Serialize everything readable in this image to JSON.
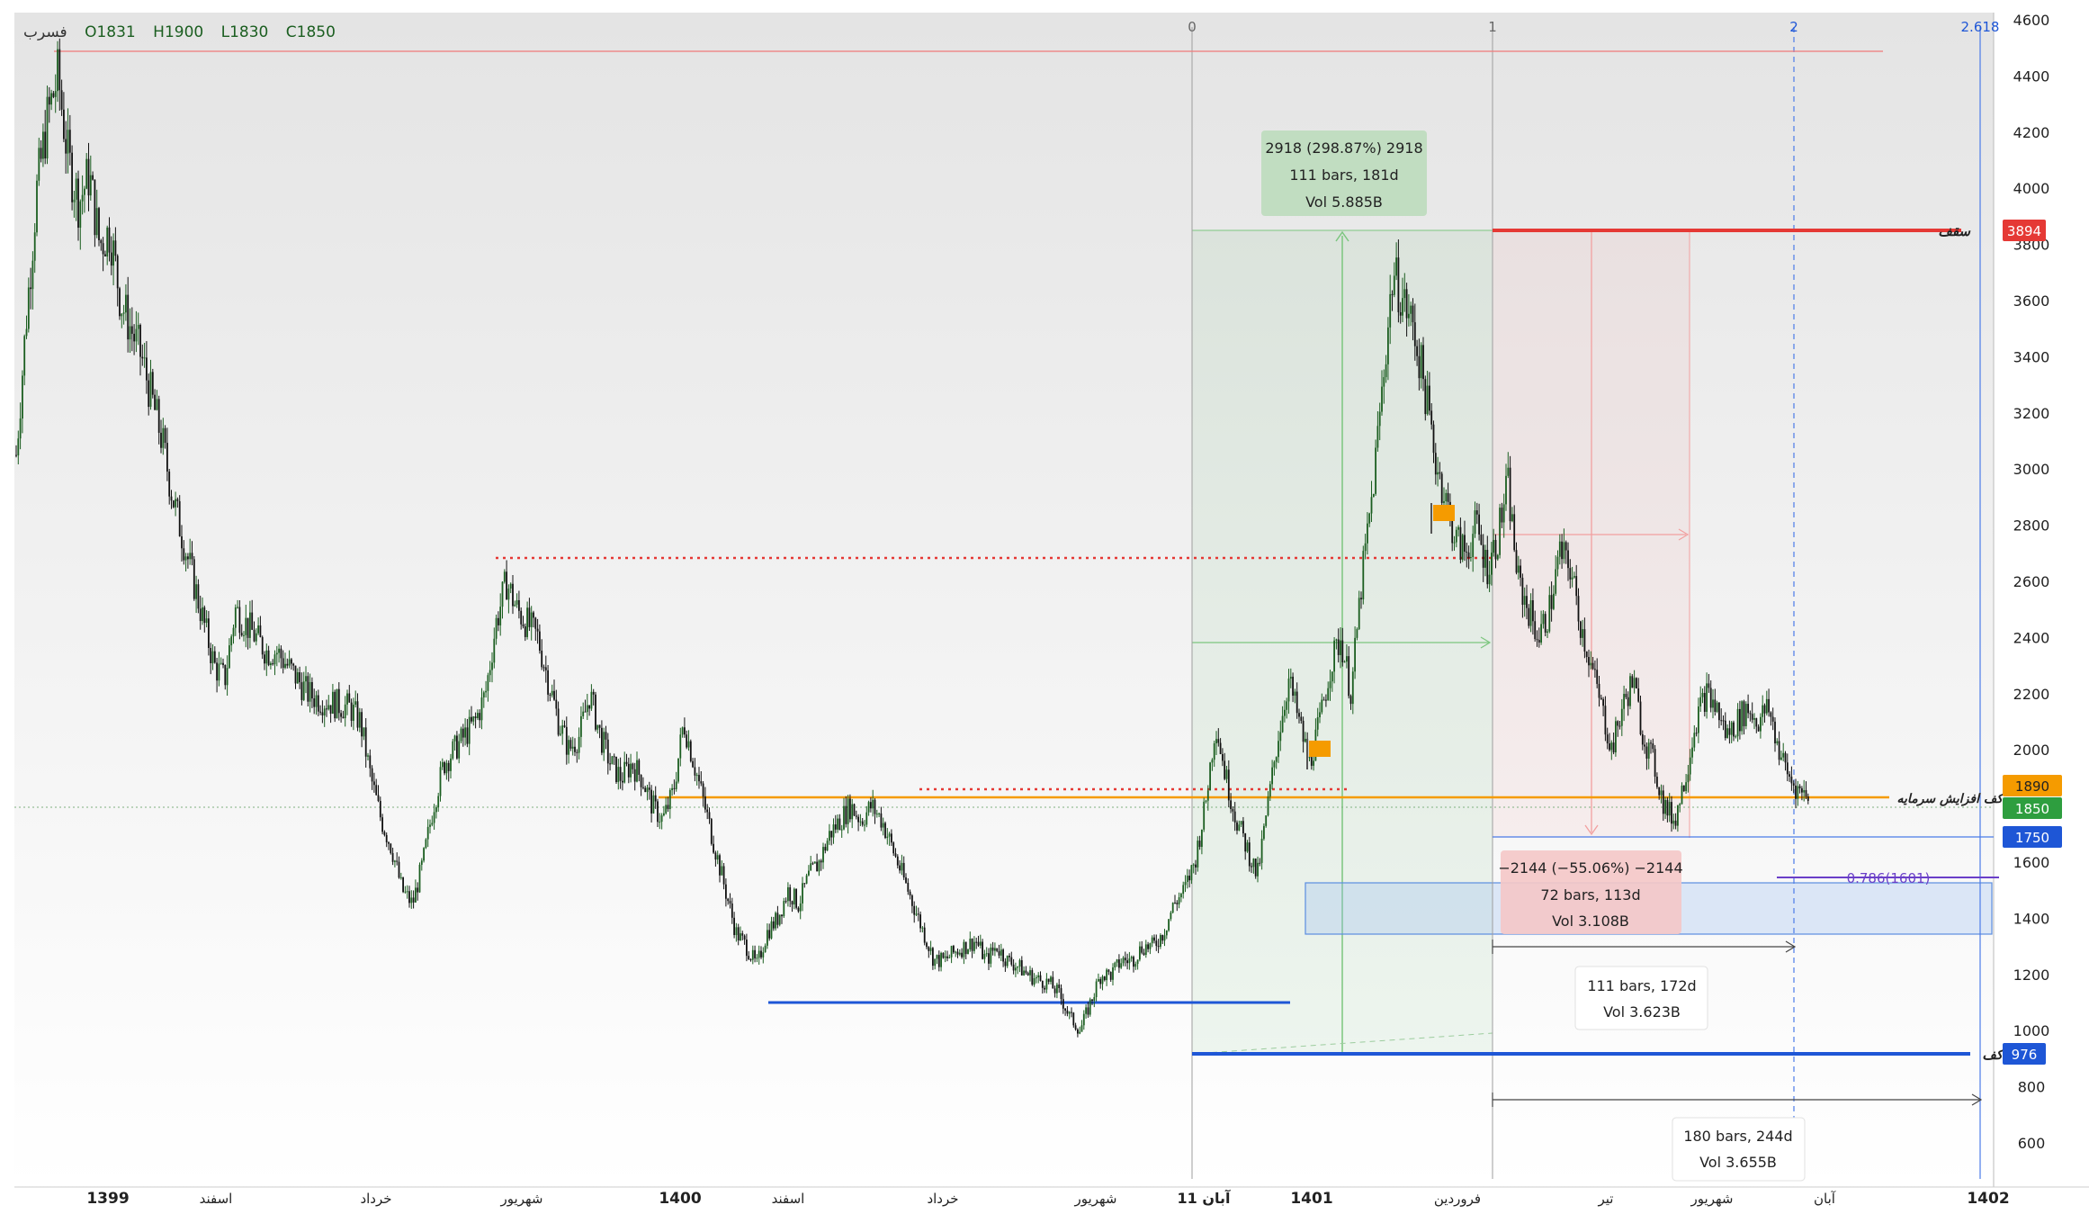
{
  "ohlc": {
    "symbol": "فسرب",
    "open": "O1831",
    "high": "H1900",
    "low": "L1830",
    "close": "C1850"
  },
  "y_ticks": [
    "4600",
    "4400",
    "4200",
    "4000",
    "3800",
    "3600",
    "3400",
    "3200",
    "3000",
    "2800",
    "2600",
    "2400",
    "2200",
    "2000",
    "1800",
    "1600",
    "1400",
    "1200",
    "1000",
    "800",
    "600"
  ],
  "x_labels": [
    "1399",
    "اسفند",
    "خرداد",
    "شهریور",
    "1400",
    "اسفند",
    "خرداد",
    "شهریور",
    "آبان 11",
    "1401",
    "فروردین",
    "تیر",
    "شهریور",
    "آبان",
    "1402"
  ],
  "fib_labels": [
    "0",
    "1",
    "2",
    "2.618"
  ],
  "price_badges": {
    "ceiling": "3894",
    "ceiling_label": "سقف",
    "capital": "1890",
    "capital_label": "کف افزایش سرمایه",
    "close": "1850",
    "support": "1750",
    "floor": "976",
    "floor_label": "کف"
  },
  "fib_level": "0.786(1601)",
  "measure_up": {
    "line1": "2918 (298.87%) 2918",
    "line2": "111 bars, 181d",
    "line3": "Vol 5.885B"
  },
  "measure_down": {
    "line1": "−2144 (−55.06%) −2144",
    "line2": "72 bars, 113d",
    "line3": "Vol 3.108B"
  },
  "range1": {
    "line1": "111 bars, 172d",
    "line2": "Vol 3.623B"
  },
  "range2": {
    "line1": "180 bars, 244d",
    "line2": "Vol 3.655B"
  },
  "colors": {
    "up": "#1b5e20",
    "down": "#111111",
    "red": "#e53935",
    "blue": "#1e56d6",
    "orange": "#f59b00",
    "green_badge": "#2e9e3f",
    "purple": "#6a3fc8"
  },
  "chart_data": {
    "type": "candlestick",
    "y_range": [
      600,
      4600
    ],
    "close_path": [
      [
        0,
        3050
      ],
      [
        1,
        3550
      ],
      [
        2,
        4000
      ],
      [
        3,
        4250
      ],
      [
        4,
        4400
      ],
      [
        5,
        4100
      ],
      [
        6,
        3950
      ],
      [
        7,
        4050
      ],
      [
        8,
        3800
      ],
      [
        9,
        3850
      ],
      [
        10,
        3600
      ],
      [
        11,
        3500
      ],
      [
        12,
        3400
      ],
      [
        13,
        3250
      ],
      [
        14,
        3100
      ],
      [
        15,
        2900
      ],
      [
        16,
        2750
      ],
      [
        17,
        2600
      ],
      [
        18,
        2450
      ],
      [
        19,
        2300
      ],
      [
        20,
        2250
      ],
      [
        21,
        2500
      ],
      [
        22,
        2450
      ],
      [
        23,
        2400
      ],
      [
        24,
        2350
      ],
      [
        25,
        2350
      ],
      [
        26,
        2300
      ],
      [
        27,
        2250
      ],
      [
        28,
        2200
      ],
      [
        29,
        2180
      ],
      [
        30,
        2170
      ],
      [
        31,
        2160
      ],
      [
        32,
        2150
      ],
      [
        33,
        2100
      ],
      [
        34,
        1900
      ],
      [
        35,
        1750
      ],
      [
        36,
        1650
      ],
      [
        37,
        1500
      ],
      [
        38,
        1450
      ],
      [
        39,
        1600
      ],
      [
        40,
        1800
      ],
      [
        41,
        1950
      ],
      [
        42,
        2000
      ],
      [
        43,
        2050
      ],
      [
        44,
        2100
      ],
      [
        45,
        2200
      ],
      [
        46,
        2450
      ],
      [
        47,
        2600
      ],
      [
        48,
        2500
      ],
      [
        49,
        2450
      ],
      [
        50,
        2400
      ],
      [
        51,
        2250
      ],
      [
        52,
        2100
      ],
      [
        53,
        2000
      ],
      [
        54,
        2050
      ],
      [
        55,
        2200
      ],
      [
        56,
        2050
      ],
      [
        57,
        1950
      ],
      [
        58,
        1900
      ],
      [
        59,
        1950
      ],
      [
        60,
        1900
      ],
      [
        61,
        1800
      ],
      [
        62,
        1750
      ],
      [
        63,
        1850
      ],
      [
        64,
        2100
      ],
      [
        65,
        1950
      ],
      [
        66,
        1800
      ],
      [
        67,
        1650
      ],
      [
        68,
        1500
      ],
      [
        69,
        1350
      ],
      [
        70,
        1300
      ],
      [
        71,
        1230
      ],
      [
        72,
        1350
      ],
      [
        73,
        1400
      ],
      [
        74,
        1500
      ],
      [
        75,
        1450
      ],
      [
        76,
        1550
      ],
      [
        77,
        1600
      ],
      [
        78,
        1700
      ],
      [
        79,
        1750
      ],
      [
        80,
        1800
      ],
      [
        81,
        1750
      ],
      [
        82,
        1800
      ],
      [
        83,
        1750
      ],
      [
        84,
        1650
      ],
      [
        85,
        1550
      ],
      [
        86,
        1450
      ],
      [
        87,
        1350
      ],
      [
        88,
        1250
      ],
      [
        89,
        1250
      ],
      [
        90,
        1280
      ],
      [
        91,
        1300
      ],
      [
        92,
        1320
      ],
      [
        93,
        1250
      ],
      [
        94,
        1300
      ],
      [
        95,
        1250
      ],
      [
        96,
        1230
      ],
      [
        97,
        1200
      ],
      [
        98,
        1180
      ],
      [
        99,
        1170
      ],
      [
        100,
        1130
      ],
      [
        101,
        1050
      ],
      [
        102,
        1000
      ],
      [
        103,
        1100
      ],
      [
        104,
        1200
      ],
      [
        105,
        1200
      ],
      [
        106,
        1250
      ],
      [
        107,
        1250
      ],
      [
        108,
        1300
      ],
      [
        109,
        1300
      ],
      [
        110,
        1350
      ],
      [
        111,
        1450
      ],
      [
        112,
        1500
      ],
      [
        113,
        1600
      ],
      [
        114,
        1800
      ],
      [
        115,
        2100
      ],
      [
        116,
        1900
      ],
      [
        117,
        1750
      ],
      [
        118,
        1650
      ],
      [
        119,
        1550
      ],
      [
        120,
        1800
      ],
      [
        121,
        2050
      ],
      [
        122,
        2250
      ],
      [
        123,
        2100
      ],
      [
        124,
        1950
      ],
      [
        125,
        2100
      ],
      [
        126,
        2300
      ],
      [
        127,
        2400
      ],
      [
        128,
        2200
      ],
      [
        129,
        2600
      ],
      [
        130,
        2900
      ],
      [
        131,
        3300
      ],
      [
        132,
        3700
      ],
      [
        133,
        3600
      ],
      [
        134,
        3500
      ],
      [
        135,
        3300
      ],
      [
        136,
        3050
      ],
      [
        137,
        2900
      ],
      [
        138,
        2750
      ],
      [
        139,
        2700
      ],
      [
        140,
        2800
      ],
      [
        141,
        2650
      ],
      [
        142,
        2750
      ],
      [
        143,
        2950
      ],
      [
        144,
        2600
      ],
      [
        145,
        2500
      ],
      [
        146,
        2400
      ],
      [
        147,
        2500
      ],
      [
        148,
        2700
      ],
      [
        149,
        2650
      ],
      [
        150,
        2450
      ],
      [
        151,
        2300
      ],
      [
        152,
        2150
      ],
      [
        153,
        2000
      ],
      [
        154,
        2150
      ],
      [
        155,
        2250
      ],
      [
        156,
        2050
      ],
      [
        157,
        1950
      ],
      [
        158,
        1800
      ],
      [
        159,
        1750
      ],
      [
        160,
        1900
      ],
      [
        161,
        2100
      ],
      [
        162,
        2200
      ],
      [
        163,
        2150
      ],
      [
        164,
        2050
      ],
      [
        165,
        2100
      ],
      [
        166,
        2150
      ],
      [
        167,
        2100
      ],
      [
        168,
        2150
      ],
      [
        169,
        2000
      ],
      [
        170,
        1900
      ],
      [
        171,
        1850
      ],
      [
        172,
        1850
      ]
    ],
    "levels": {
      "ceiling": 3894,
      "capital_increase_floor": 1890,
      "close": 1850,
      "support": 1750,
      "fib_0_786": 1601,
      "floor": 976,
      "resistance_dotted_1": 2730,
      "resistance_dotted_2": 1900
    }
  }
}
